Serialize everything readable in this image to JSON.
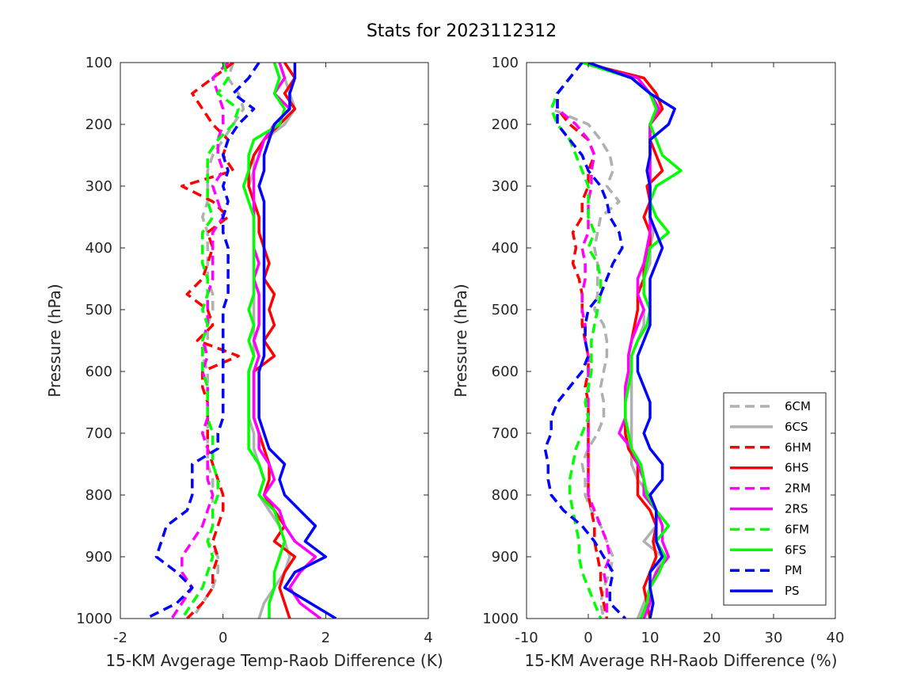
{
  "title": "Stats for 2023112312",
  "legend": {
    "placement": "lower-right of right panel",
    "entries": [
      {
        "name": "6CM",
        "color": "#b0b0b0",
        "dash": true
      },
      {
        "name": "6CS",
        "color": "#b0b0b0",
        "dash": false
      },
      {
        "name": "6HM",
        "color": "#ff0000",
        "dash": true
      },
      {
        "name": "6HS",
        "color": "#ff0000",
        "dash": false
      },
      {
        "name": "2RM",
        "color": "#ff00ff",
        "dash": true
      },
      {
        "name": "2RS",
        "color": "#ff00ff",
        "dash": false
      },
      {
        "name": "6FM",
        "color": "#00ff00",
        "dash": true
      },
      {
        "name": "6FS",
        "color": "#00ff00",
        "dash": false
      },
      {
        "name": "PM",
        "color": "#0000ff",
        "dash": true
      },
      {
        "name": "PS",
        "color": "#0000ff",
        "dash": false
      }
    ]
  },
  "chart_data": [
    {
      "type": "line",
      "xlabel": "15-KM Avgerage Temp-Raob Difference (K)",
      "ylabel": "Pressure (hPa)",
      "xlim": [
        -2,
        4
      ],
      "ylim": [
        100,
        1000
      ],
      "y_reversed": true,
      "grid": false,
      "xticks": [
        "-2",
        "0",
        "2",
        "4"
      ],
      "yticks": [
        "100",
        "200",
        "300",
        "400",
        "500",
        "600",
        "700",
        "800",
        "900",
        "1000"
      ],
      "pressure": [
        100,
        125,
        150,
        175,
        200,
        225,
        250,
        275,
        300,
        325,
        350,
        375,
        400,
        425,
        450,
        475,
        500,
        525,
        550,
        575,
        600,
        625,
        650,
        675,
        700,
        725,
        750,
        775,
        800,
        825,
        850,
        875,
        900,
        925,
        950,
        975,
        1000
      ],
      "series": [
        {
          "name": "6CM",
          "values": [
            0.2,
            0.1,
            0.3,
            0.4,
            0.2,
            0.0,
            -0.2,
            -0.3,
            -0.3,
            -0.3,
            -0.4,
            -0.3,
            -0.3,
            -0.3,
            -0.3,
            -0.2,
            -0.2,
            -0.3,
            -0.3,
            -0.4,
            -0.3,
            -0.3,
            -0.3,
            -0.3,
            -0.3,
            -0.3,
            -0.3,
            -0.2,
            -0.2,
            -0.2,
            -0.2,
            -0.3,
            -0.1,
            -0.1,
            -0.2,
            -0.4,
            -0.6
          ]
        },
        {
          "name": "6CS",
          "values": [
            1.1,
            1.2,
            1.3,
            1.4,
            1.2,
            0.8,
            0.6,
            0.6,
            0.5,
            0.6,
            0.6,
            0.6,
            0.6,
            0.6,
            0.6,
            0.6,
            0.6,
            0.6,
            0.6,
            0.6,
            0.5,
            0.5,
            0.5,
            0.5,
            0.6,
            0.6,
            0.7,
            0.8,
            0.7,
            0.9,
            1.1,
            1.2,
            1.3,
            1.2,
            1.0,
            0.8,
            0.7
          ]
        },
        {
          "name": "6HM",
          "values": [
            0.2,
            -0.2,
            -0.6,
            -0.4,
            -0.2,
            0.1,
            0.0,
            0.2,
            -0.8,
            -0.2,
            0.1,
            -0.3,
            -0.2,
            -0.3,
            -0.4,
            -0.7,
            -0.3,
            -0.2,
            -0.5,
            0.3,
            -0.4,
            -0.4,
            -0.3,
            -0.3,
            -0.3,
            -0.3,
            -0.2,
            -0.1,
            0.0,
            0.0,
            -0.1,
            -0.2,
            -0.1,
            -0.2,
            -0.2,
            -0.4,
            -0.7
          ]
        },
        {
          "name": "6HS",
          "values": [
            1.2,
            1.4,
            1.2,
            1.4,
            1.1,
            0.8,
            0.6,
            0.5,
            0.5,
            0.6,
            0.7,
            0.7,
            0.8,
            0.9,
            0.8,
            1.0,
            0.9,
            1.0,
            0.8,
            1.0,
            0.6,
            0.6,
            0.6,
            0.6,
            0.7,
            0.8,
            0.9,
            0.9,
            0.8,
            1.0,
            1.2,
            1.0,
            1.4,
            1.2,
            1.1,
            1.2,
            1.3
          ]
        },
        {
          "name": "2RM",
          "values": [
            0.1,
            -0.2,
            -0.1,
            0.0,
            0.0,
            -0.1,
            -0.1,
            0.0,
            -0.2,
            -0.1,
            0.0,
            -0.2,
            -0.2,
            -0.2,
            -0.2,
            -0.3,
            -0.3,
            -0.3,
            -0.4,
            -0.3,
            -0.4,
            -0.3,
            -0.3,
            -0.3,
            -0.4,
            -0.3,
            -0.3,
            -0.3,
            -0.2,
            -0.3,
            -0.4,
            -0.6,
            -0.8,
            -0.8,
            -0.6,
            -0.8,
            -1.0
          ]
        },
        {
          "name": "2RS",
          "values": [
            1.1,
            1.2,
            1.0,
            1.3,
            1.0,
            0.8,
            0.7,
            0.6,
            0.6,
            0.6,
            0.6,
            0.6,
            0.6,
            0.7,
            0.6,
            0.7,
            0.7,
            0.7,
            0.6,
            0.7,
            0.6,
            0.6,
            0.6,
            0.6,
            0.7,
            0.7,
            0.9,
            1.0,
            0.8,
            1.1,
            1.2,
            1.4,
            1.8,
            1.5,
            1.3,
            1.5,
            1.9
          ]
        },
        {
          "name": "6FM",
          "values": [
            0.0,
            0.1,
            -0.1,
            0.3,
            0.2,
            -0.1,
            -0.3,
            -0.3,
            -0.3,
            -0.3,
            -0.2,
            -0.4,
            -0.4,
            -0.4,
            -0.3,
            -0.3,
            -0.4,
            -0.3,
            -0.4,
            -0.4,
            -0.4,
            -0.3,
            -0.3,
            -0.3,
            -0.2,
            -0.2,
            -0.2,
            -0.1,
            -0.1,
            -0.2,
            -0.2,
            -0.3,
            -0.2,
            -0.3,
            -0.4,
            -0.6,
            -0.8
          ]
        },
        {
          "name": "6FS",
          "values": [
            1.0,
            1.1,
            1.0,
            1.2,
            1.1,
            0.6,
            0.5,
            0.5,
            0.4,
            0.5,
            0.6,
            0.6,
            0.6,
            0.6,
            0.6,
            0.6,
            0.5,
            0.6,
            0.5,
            0.6,
            0.5,
            0.5,
            0.5,
            0.5,
            0.5,
            0.5,
            0.7,
            0.8,
            0.7,
            1.0,
            1.1,
            1.2,
            1.1,
            1.0,
            1.0,
            0.9,
            0.9
          ]
        },
        {
          "name": "PM",
          "values": [
            0.7,
            0.5,
            0.2,
            0.6,
            0.3,
            0.1,
            0.0,
            0.1,
            0.0,
            0.1,
            0.0,
            0.0,
            0.1,
            0.1,
            0.1,
            0.1,
            0.0,
            0.0,
            0.0,
            0.0,
            0.0,
            0.0,
            0.0,
            0.0,
            -0.1,
            -0.1,
            -0.6,
            -0.6,
            -0.6,
            -0.7,
            -1.1,
            -1.2,
            -1.3,
            -0.9,
            -0.6,
            -0.9,
            -1.5
          ]
        },
        {
          "name": "PS",
          "values": [
            1.4,
            1.4,
            1.3,
            1.3,
            1.0,
            0.9,
            0.8,
            0.8,
            0.7,
            0.8,
            0.8,
            0.8,
            0.8,
            0.8,
            0.8,
            0.8,
            0.8,
            0.8,
            0.8,
            0.8,
            0.7,
            0.7,
            0.7,
            0.7,
            0.8,
            0.9,
            1.2,
            1.1,
            1.2,
            1.5,
            1.8,
            1.6,
            2.0,
            1.4,
            1.2,
            1.7,
            2.2
          ]
        }
      ]
    },
    {
      "type": "line",
      "xlabel": "15-KM Average RH-Raob Difference (%)",
      "ylabel": "Pressure (hPa)",
      "xlim": [
        -10,
        40
      ],
      "ylim": [
        100,
        1000
      ],
      "y_reversed": true,
      "grid": false,
      "xticks": [
        "-10",
        "0",
        "10",
        "20",
        "30",
        "40"
      ],
      "yticks": [
        "100",
        "200",
        "300",
        "400",
        "500",
        "600",
        "700",
        "800",
        "900",
        "1000"
      ],
      "pressure": [
        100,
        125,
        150,
        175,
        200,
        225,
        250,
        275,
        300,
        325,
        350,
        375,
        400,
        425,
        450,
        475,
        500,
        525,
        550,
        575,
        600,
        625,
        650,
        675,
        700,
        725,
        750,
        775,
        800,
        825,
        850,
        875,
        900,
        925,
        950,
        975,
        1000
      ],
      "series": [
        {
          "name": "6CM",
          "values": [
            -1.0,
            -3.0,
            -5.0,
            -6.0,
            0.0,
            2.0,
            3.5,
            4.0,
            3.0,
            5.0,
            2.0,
            1.5,
            1.0,
            1.5,
            1.5,
            1.5,
            1.0,
            2.5,
            3.0,
            3.0,
            2.5,
            2.0,
            2.5,
            2.5,
            1.5,
            0.0,
            -1.0,
            -0.5,
            -0.5,
            0.5,
            2.0,
            3.0,
            4.0,
            3.5,
            2.5,
            2.0,
            2.5
          ]
        },
        {
          "name": "6CS",
          "values": [
            -1.0,
            8.0,
            10.0,
            11.0,
            10.0,
            10.0,
            10.0,
            10.0,
            10.0,
            10.0,
            10.0,
            10.5,
            10.0,
            10.0,
            9.0,
            8.0,
            9.0,
            9.0,
            8.0,
            7.0,
            7.0,
            7.0,
            7.0,
            7.0,
            7.0,
            7.0,
            7.0,
            8.0,
            10.0,
            11.0,
            11.0,
            9.0,
            12.0,
            11.0,
            10.0,
            9.0,
            8.0
          ]
        },
        {
          "name": "6HM",
          "values": [
            -1.0,
            -3.0,
            -5.0,
            -5.0,
            -3.0,
            0.0,
            1.0,
            0.0,
            0.0,
            -1.0,
            -1.0,
            -2.5,
            -2.0,
            -2.5,
            -1.5,
            -1.0,
            -1.0,
            -1.0,
            -0.5,
            0.0,
            0.0,
            -0.5,
            0.0,
            0.0,
            0.0,
            0.0,
            0.0,
            0.0,
            0.0,
            0.5,
            1.0,
            1.0,
            1.5,
            2.0,
            2.0,
            2.5,
            3.0
          ]
        },
        {
          "name": "6HS",
          "values": [
            -1.0,
            9.0,
            11.0,
            12.0,
            10.0,
            10.0,
            11.0,
            12.0,
            9.5,
            10.0,
            9.0,
            10.0,
            10.0,
            9.0,
            9.0,
            8.0,
            8.0,
            7.5,
            7.0,
            6.5,
            6.5,
            6.0,
            6.0,
            6.0,
            6.0,
            6.5,
            8.0,
            8.0,
            8.0,
            10.0,
            11.0,
            10.5,
            11.0,
            10.0,
            9.0,
            9.5,
            10.0
          ]
        },
        {
          "name": "2RM",
          "values": [
            -1.0,
            -3.0,
            -5.0,
            -5.0,
            -2.0,
            0.0,
            1.0,
            0.5,
            0.5,
            0.0,
            0.0,
            0.0,
            -1.0,
            -0.5,
            -0.5,
            -1.0,
            -1.0,
            -0.5,
            -0.5,
            0.0,
            0.0,
            0.0,
            0.0,
            0.0,
            0.0,
            0.0,
            0.0,
            0.0,
            0.0,
            1.0,
            2.0,
            3.0,
            3.5,
            2.5,
            3.0,
            3.0,
            3.0
          ]
        },
        {
          "name": "2RS",
          "values": [
            -1.0,
            8.0,
            10.0,
            11.5,
            10.0,
            10.0,
            10.0,
            10.0,
            10.0,
            10.0,
            10.0,
            10.0,
            9.5,
            9.0,
            8.0,
            8.0,
            9.0,
            8.0,
            7.0,
            6.5,
            6.5,
            6.0,
            6.0,
            6.0,
            5.0,
            7.0,
            8.0,
            9.0,
            9.0,
            11.0,
            12.0,
            12.0,
            13.0,
            11.0,
            10.0,
            10.0,
            9.0
          ]
        },
        {
          "name": "6FM",
          "values": [
            -1.0,
            -3.0,
            -5.0,
            -6.0,
            -5.0,
            -3.0,
            -2.0,
            -1.0,
            0.0,
            0.0,
            0.0,
            1.0,
            0.0,
            1.5,
            2.0,
            2.0,
            1.5,
            1.0,
            0.5,
            0.5,
            0.5,
            0.0,
            -0.5,
            0.0,
            -1.0,
            -2.0,
            -2.5,
            -3.0,
            -3.0,
            -2.5,
            -2.0,
            -1.5,
            -1.5,
            -1.0,
            0.0,
            1.0,
            2.0
          ]
        },
        {
          "name": "6FS",
          "values": [
            -1.0,
            7.0,
            10.0,
            11.0,
            10.0,
            11.0,
            12.0,
            15.0,
            11.0,
            10.0,
            11.0,
            13.0,
            10.0,
            9.5,
            9.0,
            9.0,
            10.0,
            9.5,
            8.0,
            7.0,
            7.0,
            6.5,
            6.0,
            6.0,
            6.5,
            7.0,
            8.5,
            9.0,
            9.5,
            11.0,
            13.0,
            11.0,
            12.5,
            11.5,
            10.0,
            9.5,
            8.5
          ]
        },
        {
          "name": "PM",
          "values": [
            -1.0,
            -3.0,
            -5.0,
            -5.0,
            -5.0,
            -3.0,
            -1.0,
            0.0,
            2.0,
            3.0,
            3.5,
            5.0,
            5.5,
            4.0,
            3.0,
            2.0,
            0.0,
            -0.5,
            -0.5,
            0.0,
            -1.0,
            -3.0,
            -5.0,
            -6.0,
            -6.0,
            -7.0,
            -6.5,
            -6.5,
            -6.0,
            -4.0,
            -1.0,
            1.0,
            2.5,
            4.0,
            3.5,
            3.5,
            6.0
          ]
        },
        {
          "name": "PS",
          "values": [
            0.0,
            7.0,
            10.0,
            14.0,
            13.0,
            10.0,
            10.0,
            9.5,
            10.0,
            10.0,
            10.0,
            11.0,
            12.0,
            11.0,
            10.0,
            10.0,
            10.0,
            10.0,
            9.0,
            8.0,
            8.0,
            9.0,
            10.0,
            10.0,
            9.0,
            10.0,
            12.0,
            12.0,
            10.0,
            11.0,
            11.0,
            11.0,
            12.0,
            10.0,
            10.0,
            10.5,
            10.0
          ]
        }
      ]
    }
  ]
}
